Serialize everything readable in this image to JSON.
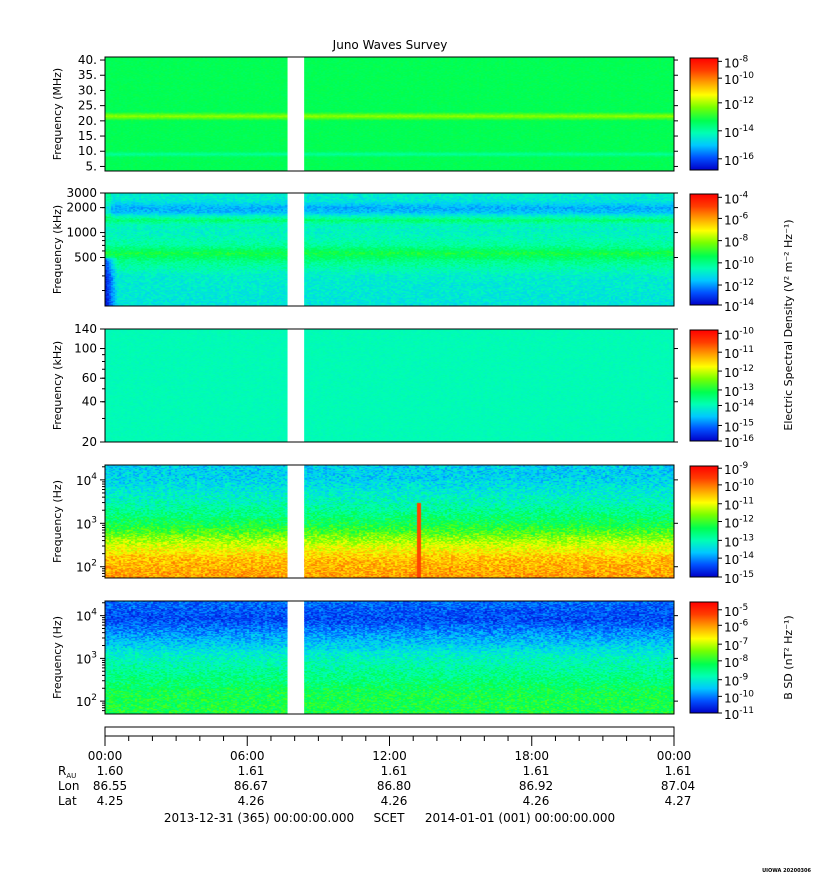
{
  "chart_data": {
    "type": "heatmap",
    "title": "Juno Waves Survey",
    "colorscale": [
      "#0000c8",
      "#0050ff",
      "#00c8ff",
      "#00ffb4",
      "#00ff50",
      "#78ff00",
      "#ffff00",
      "#ffa000",
      "#ff3c00",
      "#ff0000"
    ],
    "data_gap": {
      "start_hour": 7.7,
      "end_hour": 8.4
    },
    "panels": [
      {
        "id": "p1",
        "ylabel": "Frequency (MHz)",
        "yscale": "linear",
        "ylim": [
          3.5,
          41
        ],
        "yticks": [
          5,
          10,
          15,
          20,
          25,
          30,
          35,
          40
        ],
        "ytick_labels": [
          "5.",
          "10.",
          "15.",
          "20.",
          "25.",
          "30.",
          "35.",
          "40."
        ],
        "colorbar": {
          "base": "10",
          "ticks": [
            {
              "exp": "-16",
              "level": 0.1
            },
            {
              "exp": "-14",
              "level": 0.35
            },
            {
              "exp": "-12",
              "level": 0.6
            },
            {
              "exp": "-10",
              "level": 0.82
            },
            {
              "exp": "-8",
              "level": 0.97
            }
          ]
        },
        "cb_label": "",
        "levels": [
          {
            "f": 3.5,
            "v": 0.44
          },
          {
            "f": 8,
            "v": 0.44
          },
          {
            "f": 9,
            "v": 0.36
          },
          {
            "f": 10,
            "v": 0.44
          },
          {
            "f": 20,
            "v": 0.44
          },
          {
            "f": 21.5,
            "v": 0.58
          },
          {
            "f": 23,
            "v": 0.44
          },
          {
            "f": 41,
            "v": 0.44
          }
        ]
      },
      {
        "id": "p2",
        "ylabel": "Frequency (kHz)",
        "yscale": "log",
        "ylim": [
          130,
          3000
        ],
        "yticks": [
          500,
          1000,
          2000,
          3000
        ],
        "ytick_labels": [
          "500",
          "1000",
          "2000",
          "3000"
        ],
        "colorbar": {
          "base": "10",
          "ticks": [
            {
              "exp": "-14",
              "level": 0.0
            },
            {
              "exp": "-12",
              "level": 0.18
            },
            {
              "exp": "-10",
              "level": 0.38
            },
            {
              "exp": "-8",
              "level": 0.58
            },
            {
              "exp": "-6",
              "level": 0.78
            },
            {
              "exp": "-4",
              "level": 0.97
            }
          ]
        },
        "cb_label": "Electric Spectral Density (V² m⁻² Hz⁻¹)",
        "levels": [
          {
            "f": 130,
            "v": 0.28
          },
          {
            "f": 300,
            "v": 0.3
          },
          {
            "f": 450,
            "v": 0.38
          },
          {
            "f": 560,
            "v": 0.46
          },
          {
            "f": 700,
            "v": 0.36
          },
          {
            "f": 1000,
            "v": 0.31
          },
          {
            "f": 1250,
            "v": 0.33
          },
          {
            "f": 1400,
            "v": 0.41
          },
          {
            "f": 1550,
            "v": 0.32
          },
          {
            "f": 1750,
            "v": 0.22
          },
          {
            "f": 2000,
            "v": 0.2
          },
          {
            "f": 2400,
            "v": 0.28
          },
          {
            "f": 3000,
            "v": 0.3
          }
        ]
      },
      {
        "id": "p3",
        "ylabel": "Frequency (kHz)",
        "yscale": "log",
        "ylim": [
          20,
          140
        ],
        "yticks": [
          20,
          40,
          60,
          100,
          140
        ],
        "ytick_labels": [
          "20",
          "40",
          "60",
          "100",
          "140"
        ],
        "colorbar": {
          "base": "10",
          "ticks": [
            {
              "exp": "-16",
              "level": 0.0
            },
            {
              "exp": "-15",
              "level": 0.14
            },
            {
              "exp": "-14",
              "level": 0.32
            },
            {
              "exp": "-13",
              "level": 0.46
            },
            {
              "exp": "-12",
              "level": 0.63
            },
            {
              "exp": "-11",
              "level": 0.8
            },
            {
              "exp": "-10",
              "level": 0.97
            }
          ]
        },
        "cb_label": "",
        "levels": [
          {
            "f": 20,
            "v": 0.33
          },
          {
            "f": 140,
            "v": 0.33
          }
        ]
      },
      {
        "id": "p4",
        "ylabel": "Frequency (Hz)",
        "yscale": "log",
        "ylim": [
          55,
          22000
        ],
        "yticks": [
          100,
          1000,
          10000
        ],
        "ytick_exps": [
          "2",
          "3",
          "4"
        ],
        "colorbar": {
          "base": "10",
          "ticks": [
            {
              "exp": "-15",
              "level": 0.0
            },
            {
              "exp": "-14",
              "level": 0.17
            },
            {
              "exp": "-13",
              "level": 0.33
            },
            {
              "exp": "-12",
              "level": 0.5
            },
            {
              "exp": "-11",
              "level": 0.66
            },
            {
              "exp": "-10",
              "level": 0.83
            },
            {
              "exp": "-9",
              "level": 0.98
            }
          ]
        },
        "cb_label": "",
        "levels": [
          {
            "f": 55,
            "v": 0.78
          },
          {
            "f": 150,
            "v": 0.74
          },
          {
            "f": 300,
            "v": 0.64
          },
          {
            "f": 600,
            "v": 0.52
          },
          {
            "f": 1000,
            "v": 0.44
          },
          {
            "f": 3000,
            "v": 0.33
          },
          {
            "f": 10000,
            "v": 0.25
          },
          {
            "f": 22000,
            "v": 0.24
          }
        ],
        "spike_hour": 13.2
      },
      {
        "id": "p5",
        "ylabel": "Frequency (Hz)",
        "yscale": "log",
        "ylim": [
          50,
          22000
        ],
        "yticks": [
          100,
          1000,
          10000
        ],
        "ytick_exps": [
          "2",
          "3",
          "4"
        ],
        "colorbar": {
          "base": "10",
          "ticks": [
            {
              "exp": "-11",
              "level": 0.0
            },
            {
              "exp": "-10",
              "level": 0.15
            },
            {
              "exp": "-9",
              "level": 0.3
            },
            {
              "exp": "-8",
              "level": 0.47
            },
            {
              "exp": "-7",
              "level": 0.62
            },
            {
              "exp": "-6",
              "level": 0.79
            },
            {
              "exp": "-5",
              "level": 0.93
            }
          ]
        },
        "cb_label": "B SD (nT² Hz⁻¹)",
        "levels": [
          {
            "f": 50,
            "v": 0.46
          },
          {
            "f": 150,
            "v": 0.45
          },
          {
            "f": 400,
            "v": 0.38
          },
          {
            "f": 1000,
            "v": 0.32
          },
          {
            "f": 3000,
            "v": 0.2
          },
          {
            "f": 8000,
            "v": 0.1
          },
          {
            "f": 15000,
            "v": 0.12
          },
          {
            "f": 22000,
            "v": 0.14
          }
        ]
      }
    ],
    "x_axis": {
      "start_hour": 0,
      "end_hour": 24,
      "major_ticks": [
        0,
        6,
        12,
        18,
        24
      ],
      "tick_labels": [
        "00:00",
        "06:00",
        "12:00",
        "18:00",
        "00:00"
      ]
    },
    "ephemeris": [
      {
        "label": "R",
        "label_sub": "AU",
        "values": [
          "1.60",
          "1.61",
          "1.61",
          "1.61",
          "1.61"
        ]
      },
      {
        "label": "Lon",
        "label_sub": "",
        "values": [
          "86.55",
          "86.67",
          "86.80",
          "86.92",
          "87.04"
        ]
      },
      {
        "label": "Lat",
        "label_sub": "",
        "values": [
          "4.25",
          "4.26",
          "4.26",
          "4.26",
          "4.27"
        ]
      }
    ],
    "time_range": {
      "start": "2013-12-31 (365) 00:00:00.000",
      "label": "SCET",
      "end": "2014-01-01 (001) 00:00:00.000"
    },
    "credit": "UIOWA 20200306"
  }
}
